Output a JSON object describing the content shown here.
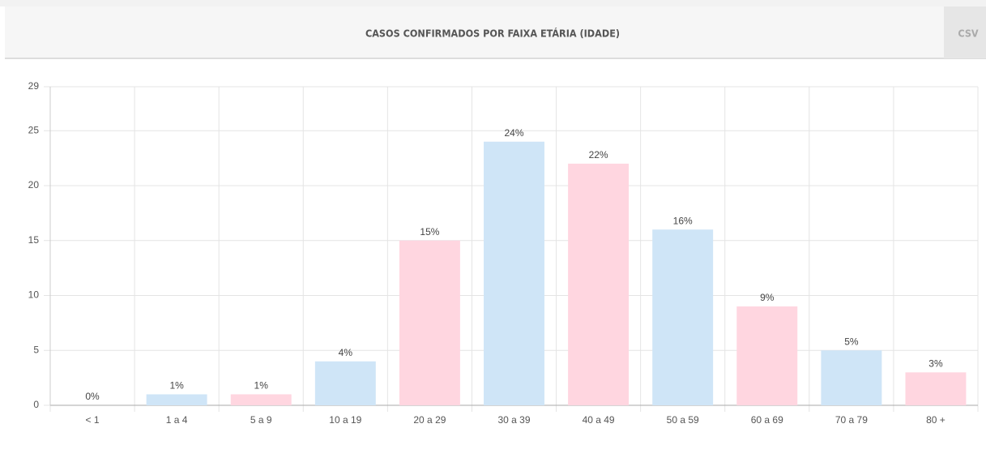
{
  "chart_data": {
    "type": "bar",
    "title": "CASOS CONFIRMADOS POR FAIXA ETÁRIA (IDADE)",
    "button": "CSV",
    "categories": [
      "< 1",
      "1 a 4",
      "5 a 9",
      "10 a 19",
      "20 a 29",
      "30 a 39",
      "40 a 49",
      "50 a 59",
      "60 a 69",
      "70 a 79",
      "80 +"
    ],
    "values": [
      0,
      1,
      1,
      4,
      15,
      24,
      22,
      16,
      9,
      5,
      3
    ],
    "value_labels": [
      "0%",
      "1%",
      "1%",
      "4%",
      "15%",
      "24%",
      "22%",
      "16%",
      "9%",
      "5%",
      "3%"
    ],
    "colors": [
      "#ffd6e0",
      "#cfe5f7",
      "#ffd6e0",
      "#cfe5f7",
      "#ffd6e0",
      "#cfe5f7",
      "#ffd6e0",
      "#cfe5f7",
      "#ffd6e0",
      "#cfe5f7",
      "#ffd6e0"
    ],
    "ylim": [
      0,
      29
    ],
    "yticks": [
      0,
      5,
      10,
      15,
      20,
      25,
      29
    ],
    "grid": true
  }
}
